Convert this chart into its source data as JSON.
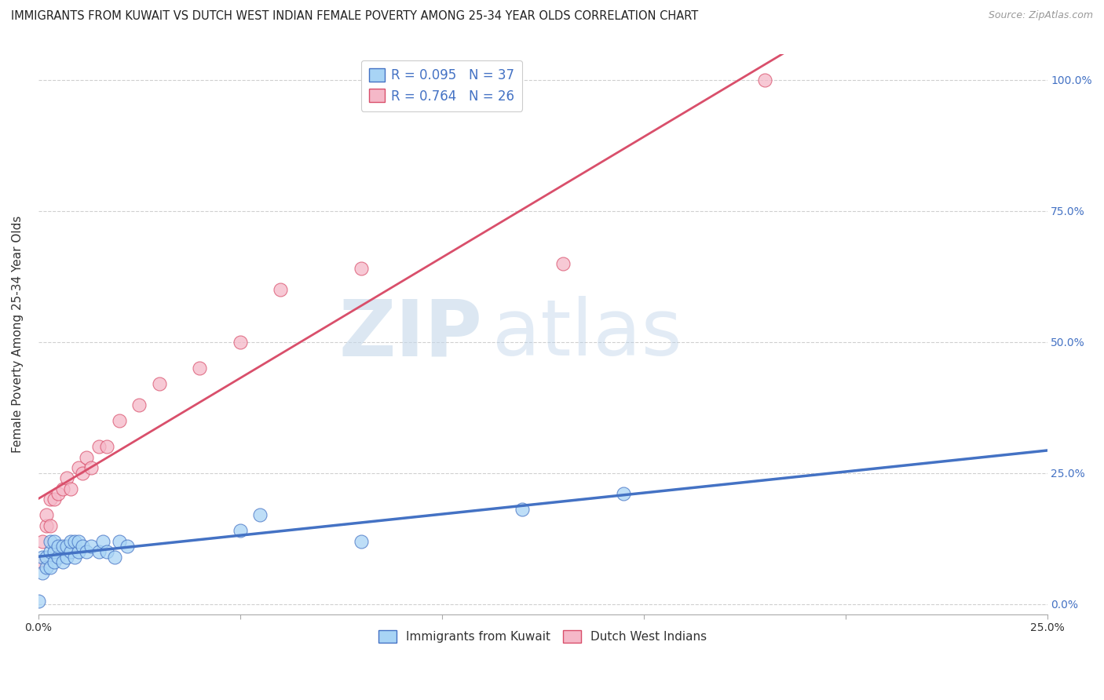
{
  "title": "IMMIGRANTS FROM KUWAIT VS DUTCH WEST INDIAN FEMALE POVERTY AMONG 25-34 YEAR OLDS CORRELATION CHART",
  "source": "Source: ZipAtlas.com",
  "ylabel": "Female Poverty Among 25-34 Year Olds",
  "xlim": [
    0.0,
    0.25
  ],
  "ylim": [
    -0.02,
    1.05
  ],
  "x_ticks": [
    0.0,
    0.05,
    0.1,
    0.15,
    0.2,
    0.25
  ],
  "x_tick_labels": [
    "0.0%",
    "",
    "",
    "",
    "",
    "25.0%"
  ],
  "y_ticks_right": [
    0.0,
    0.25,
    0.5,
    0.75,
    1.0
  ],
  "y_tick_labels_right": [
    "0.0%",
    "25.0%",
    "50.0%",
    "75.0%",
    "100.0%"
  ],
  "kuwait_color": "#a8d4f5",
  "dutch_color": "#f5b8c8",
  "kuwait_line_color": "#4472c4",
  "dutch_line_color": "#d94f6b",
  "legend_R_kuwait": "R = 0.095",
  "legend_N_kuwait": "N = 37",
  "legend_R_dutch": "R = 0.764",
  "legend_N_dutch": "N = 26",
  "background_color": "#ffffff",
  "grid_color": "#d0d0d0",
  "kuwait_x": [
    0.0,
    0.001,
    0.001,
    0.002,
    0.002,
    0.003,
    0.003,
    0.003,
    0.004,
    0.004,
    0.004,
    0.005,
    0.005,
    0.006,
    0.006,
    0.007,
    0.007,
    0.008,
    0.008,
    0.009,
    0.009,
    0.01,
    0.01,
    0.011,
    0.012,
    0.013,
    0.015,
    0.016,
    0.017,
    0.019,
    0.02,
    0.022,
    0.05,
    0.055,
    0.08,
    0.12,
    0.145
  ],
  "kuwait_y": [
    0.005,
    0.06,
    0.09,
    0.07,
    0.09,
    0.07,
    0.1,
    0.12,
    0.08,
    0.1,
    0.12,
    0.09,
    0.11,
    0.08,
    0.11,
    0.09,
    0.11,
    0.1,
    0.12,
    0.09,
    0.12,
    0.1,
    0.12,
    0.11,
    0.1,
    0.11,
    0.1,
    0.12,
    0.1,
    0.09,
    0.12,
    0.11,
    0.14,
    0.17,
    0.12,
    0.18,
    0.21
  ],
  "dutch_x": [
    0.0,
    0.001,
    0.002,
    0.002,
    0.003,
    0.003,
    0.004,
    0.005,
    0.006,
    0.007,
    0.008,
    0.01,
    0.011,
    0.012,
    0.013,
    0.015,
    0.017,
    0.02,
    0.025,
    0.03,
    0.04,
    0.05,
    0.06,
    0.08,
    0.13,
    0.18
  ],
  "dutch_y": [
    0.08,
    0.12,
    0.15,
    0.17,
    0.15,
    0.2,
    0.2,
    0.21,
    0.22,
    0.24,
    0.22,
    0.26,
    0.25,
    0.28,
    0.26,
    0.3,
    0.3,
    0.35,
    0.38,
    0.42,
    0.45,
    0.5,
    0.6,
    0.64,
    0.65,
    1.0
  ],
  "title_fontsize": 10.5,
  "axis_label_fontsize": 11,
  "tick_fontsize": 10,
  "legend_fontsize": 12
}
